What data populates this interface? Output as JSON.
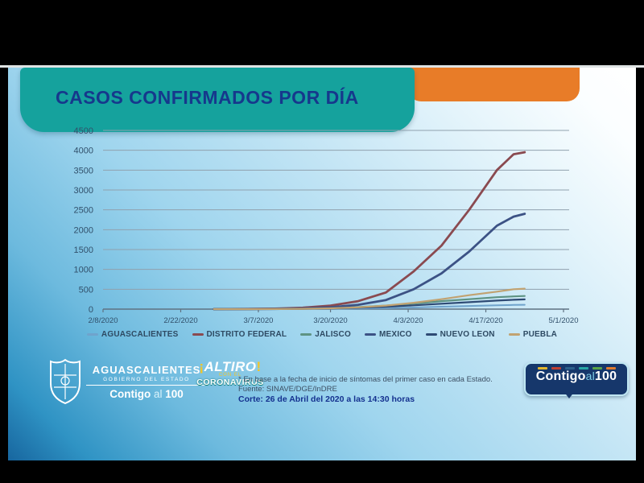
{
  "slide": {
    "title": "CASOS CONFIRMADOS POR DÍA",
    "colors": {
      "title_box_teal": "#15a29d",
      "accent_orange": "#e87c28",
      "title_text_navy": "#16388c",
      "grid_gray": "#90a1ae",
      "axis_gray": "#5f7282",
      "tick_text": "#31506b"
    }
  },
  "chart_data": {
    "type": "line",
    "title": "CASOS CONFIRMADOS POR DÍA",
    "xlabel": "",
    "ylabel": "",
    "ylim": [
      0,
      4500
    ],
    "y_ticks": [
      0,
      500,
      1000,
      1500,
      2000,
      2500,
      3000,
      3500,
      4000,
      4500
    ],
    "x_ticks": [
      "2/8/2020",
      "2/22/2020",
      "3/7/2020",
      "3/20/2020",
      "4/3/2020",
      "4/17/2020",
      "5/1/2020"
    ],
    "grid": true,
    "legend_position": "bottom",
    "x": [
      "2/28/2020",
      "3/5/2020",
      "3/10/2020",
      "3/15/2020",
      "3/20/2020",
      "3/25/2020",
      "3/30/2020",
      "4/4/2020",
      "4/9/2020",
      "4/14/2020",
      "4/19/2020",
      "4/22/2020",
      "4/24/2020"
    ],
    "series": [
      {
        "name": "AGUASCALIENTES",
        "color": "#6fa3cc",
        "width": 2,
        "values": [
          0,
          0,
          1,
          3,
          8,
          15,
          25,
          40,
          60,
          80,
          95,
          105,
          110
        ]
      },
      {
        "name": "DISTRITO FEDERAL",
        "color": "#8a4a50",
        "width": 2.8,
        "values": [
          1,
          4,
          12,
          35,
          90,
          200,
          420,
          950,
          1600,
          2500,
          3500,
          3900,
          3950
        ]
      },
      {
        "name": "JALISCO",
        "color": "#5e9383",
        "width": 2.2,
        "values": [
          0,
          1,
          4,
          10,
          25,
          50,
          90,
          140,
          200,
          250,
          300,
          320,
          330
        ]
      },
      {
        "name": "MEXICO",
        "color": "#3c5285",
        "width": 2.8,
        "values": [
          0,
          2,
          6,
          18,
          45,
          110,
          230,
          500,
          900,
          1450,
          2100,
          2330,
          2400
        ]
      },
      {
        "name": "NUEVO LEON",
        "color": "#2e4a74",
        "width": 2.2,
        "values": [
          0,
          1,
          3,
          8,
          18,
          35,
          60,
          95,
          135,
          175,
          215,
          235,
          245
        ]
      },
      {
        "name": "PUEBLA",
        "color": "#c1a271",
        "width": 2.2,
        "values": [
          0,
          1,
          3,
          8,
          20,
          45,
          90,
          160,
          250,
          350,
          440,
          500,
          515
        ]
      }
    ]
  },
  "footer": {
    "gov_logo": {
      "state": "AGUASCALIENTES",
      "sub": "GOBIERNO DEL ESTADO",
      "brand_word1": "Contigo",
      "brand_word2": "al",
      "brand_word3": "100"
    },
    "altiro_logo": {
      "bang_open": "¡",
      "top": "ALTIRO",
      "bang_close": "!",
      "mid": "CON EL",
      "bottom": "CORONAVIRUS"
    },
    "note_line1": "* En base a la fecha de inicio de síntomas del primer caso en cada Estado.",
    "note_line2": "Fuente: SINAVE/DGE/InDRE",
    "note_line3": "Corte: 26 de Abril del 2020 a las 14:30 horas",
    "badge": {
      "word1": "Contigo",
      "word2": "al",
      "word3": "100",
      "dash_colors": [
        "#e3b52c",
        "#bf3f32",
        "#2c5f8a",
        "#27a5a5",
        "#58a447",
        "#df7b2e"
      ]
    }
  }
}
